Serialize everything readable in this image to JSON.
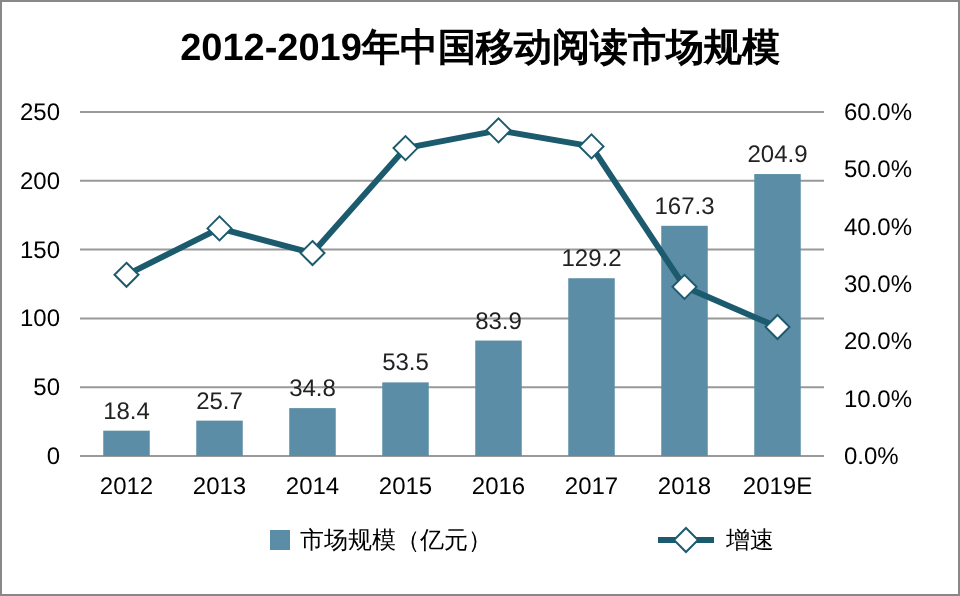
{
  "chart_data": {
    "type": "bar",
    "title": "2012-2019年中国移动阅读市场规模",
    "categories": [
      "2012",
      "2013",
      "2014",
      "2015",
      "2016",
      "2017",
      "2018",
      "2019E"
    ],
    "series": [
      {
        "name": "市场规模（亿元）",
        "color": "#5b8ea6",
        "values": [
          18.4,
          25.7,
          34.8,
          53.5,
          83.9,
          129.2,
          167.3,
          204.9
        ]
      },
      {
        "name": "增速",
        "type": "line",
        "axis": "y2",
        "color": "#1c5a6e",
        "marker": "diamond",
        "values": [
          31.6,
          39.7,
          35.4,
          53.7,
          56.8,
          54.0,
          29.5,
          22.5
        ]
      }
    ],
    "ylim": [
      0,
      250
    ],
    "yticks": [
      0,
      50,
      100,
      150,
      200,
      250
    ],
    "y2lim": [
      0,
      60
    ],
    "y2ticks": [
      {
        "value": 0,
        "label": "0.0%"
      },
      {
        "value": 10,
        "label": "10.0%"
      },
      {
        "value": 20,
        "label": "20.0%"
      },
      {
        "value": 30,
        "label": "30.0%"
      },
      {
        "value": 40,
        "label": "40.0%"
      },
      {
        "value": 50,
        "label": "50.0%"
      },
      {
        "value": 60,
        "label": "60.0%"
      }
    ],
    "value_labels": [
      "18.4",
      "25.7",
      "34.8",
      "53.5",
      "83.9",
      "129.2",
      "167.3",
      "204.9"
    ],
    "grid": "y",
    "legend": "bottom"
  }
}
